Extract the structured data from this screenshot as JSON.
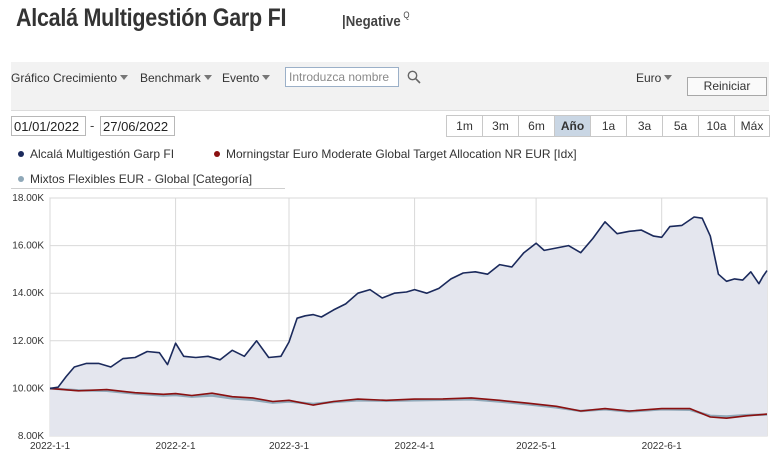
{
  "header": {
    "fund_name": "Alcalá Multigestión Garp FI",
    "rating_label": "|Negative",
    "rating_sup": "Q"
  },
  "toolbar": {
    "growth_chart_label": "Gráfico Crecimiento",
    "benchmark_label": "Benchmark",
    "event_label": "Evento",
    "search_placeholder": "Introduzca nombre",
    "currency_label": "Euro",
    "reset_label": "Reiniciar"
  },
  "date_range": {
    "start": "01/01/2022",
    "separator": "-",
    "end": "27/06/2022"
  },
  "periods": [
    {
      "label": "1m"
    },
    {
      "label": "3m"
    },
    {
      "label": "6m"
    },
    {
      "label": "Año",
      "active": true
    },
    {
      "label": "1a"
    },
    {
      "label": "3a"
    },
    {
      "label": "5a"
    },
    {
      "label": "10a"
    },
    {
      "label": "Máx"
    }
  ],
  "legend": [
    {
      "label": "Alcalá Multigestión Garp FI",
      "color": "#1b2a5c"
    },
    {
      "label": "Morningstar Euro Moderate Global Target Allocation NR EUR [Idx]",
      "color": "#8b1010"
    },
    {
      "label": "Mixtos Flexibles EUR - Global [Categoría]",
      "color": "#8fa8b8"
    }
  ],
  "chart_data": {
    "type": "area",
    "x_tick_labels": [
      "2022-1-1",
      "2022-2-1",
      "2022-3-1",
      "2022-4-1",
      "2022-5-1",
      "2022-6-1"
    ],
    "y_tick_labels": [
      "8.00K",
      "10.00K",
      "12.00K",
      "14.00K",
      "16.00K",
      "18.00K"
    ],
    "ylim": [
      8000,
      18000
    ],
    "xlim": [
      "2022-01-01",
      "2022-06-27"
    ],
    "grid": true,
    "series": [
      {
        "name": "Alcalá Multigestión Garp FI",
        "color": "#1b2a5c",
        "fill": "#e4e6ee",
        "points": [
          [
            "2022-01-01",
            10000
          ],
          [
            "2022-01-03",
            10050
          ],
          [
            "2022-01-05",
            10500
          ],
          [
            "2022-01-07",
            10900
          ],
          [
            "2022-01-10",
            11050
          ],
          [
            "2022-01-13",
            11050
          ],
          [
            "2022-01-16",
            10900
          ],
          [
            "2022-01-19",
            11250
          ],
          [
            "2022-01-22",
            11300
          ],
          [
            "2022-01-25",
            11550
          ],
          [
            "2022-01-28",
            11500
          ],
          [
            "2022-01-30",
            11000
          ],
          [
            "2022-02-01",
            11900
          ],
          [
            "2022-02-03",
            11350
          ],
          [
            "2022-02-06",
            11300
          ],
          [
            "2022-02-09",
            11350
          ],
          [
            "2022-02-12",
            11200
          ],
          [
            "2022-02-15",
            11600
          ],
          [
            "2022-02-18",
            11350
          ],
          [
            "2022-02-21",
            12000
          ],
          [
            "2022-02-24",
            11300
          ],
          [
            "2022-02-27",
            11350
          ],
          [
            "2022-03-01",
            11950
          ],
          [
            "2022-03-03",
            12950
          ],
          [
            "2022-03-05",
            13050
          ],
          [
            "2022-03-07",
            13100
          ],
          [
            "2022-03-09",
            13000
          ],
          [
            "2022-03-12",
            13300
          ],
          [
            "2022-03-15",
            13550
          ],
          [
            "2022-03-18",
            14000
          ],
          [
            "2022-03-21",
            14150
          ],
          [
            "2022-03-24",
            13800
          ],
          [
            "2022-03-27",
            14000
          ],
          [
            "2022-03-30",
            14050
          ],
          [
            "2022-04-01",
            14150
          ],
          [
            "2022-04-04",
            14000
          ],
          [
            "2022-04-07",
            14200
          ],
          [
            "2022-04-10",
            14600
          ],
          [
            "2022-04-13",
            14850
          ],
          [
            "2022-04-16",
            14900
          ],
          [
            "2022-04-19",
            14800
          ],
          [
            "2022-04-22",
            15200
          ],
          [
            "2022-04-25",
            15100
          ],
          [
            "2022-04-28",
            15700
          ],
          [
            "2022-05-01",
            16100
          ],
          [
            "2022-05-03",
            15800
          ],
          [
            "2022-05-06",
            15900
          ],
          [
            "2022-05-09",
            16000
          ],
          [
            "2022-05-12",
            15700
          ],
          [
            "2022-05-15",
            16300
          ],
          [
            "2022-05-18",
            17000
          ],
          [
            "2022-05-21",
            16500
          ],
          [
            "2022-05-24",
            16600
          ],
          [
            "2022-05-27",
            16650
          ],
          [
            "2022-05-30",
            16400
          ],
          [
            "2022-06-01",
            16350
          ],
          [
            "2022-06-03",
            16800
          ],
          [
            "2022-06-06",
            16850
          ],
          [
            "2022-06-09",
            17200
          ],
          [
            "2022-06-11",
            17150
          ],
          [
            "2022-06-13",
            16400
          ],
          [
            "2022-06-15",
            14800
          ],
          [
            "2022-06-17",
            14500
          ],
          [
            "2022-06-19",
            14600
          ],
          [
            "2022-06-21",
            14550
          ],
          [
            "2022-06-23",
            14900
          ],
          [
            "2022-06-25",
            14400
          ],
          [
            "2022-06-26",
            14700
          ],
          [
            "2022-06-27",
            14950
          ]
        ]
      },
      {
        "name": "Morningstar Euro Moderate Global Target Allocation NR EUR [Idx]",
        "color": "#8b1010",
        "points": [
          [
            "2022-01-01",
            10000
          ],
          [
            "2022-01-08",
            9900
          ],
          [
            "2022-01-15",
            9950
          ],
          [
            "2022-01-22",
            9820
          ],
          [
            "2022-01-29",
            9750
          ],
          [
            "2022-02-01",
            9780
          ],
          [
            "2022-02-05",
            9700
          ],
          [
            "2022-02-10",
            9800
          ],
          [
            "2022-02-15",
            9650
          ],
          [
            "2022-02-20",
            9600
          ],
          [
            "2022-02-25",
            9450
          ],
          [
            "2022-03-01",
            9500
          ],
          [
            "2022-03-07",
            9300
          ],
          [
            "2022-03-12",
            9450
          ],
          [
            "2022-03-18",
            9550
          ],
          [
            "2022-03-25",
            9500
          ],
          [
            "2022-04-01",
            9550
          ],
          [
            "2022-04-08",
            9560
          ],
          [
            "2022-04-15",
            9600
          ],
          [
            "2022-04-22",
            9500
          ],
          [
            "2022-04-29",
            9380
          ],
          [
            "2022-05-06",
            9250
          ],
          [
            "2022-05-12",
            9050
          ],
          [
            "2022-05-18",
            9150
          ],
          [
            "2022-05-24",
            9050
          ],
          [
            "2022-06-01",
            9150
          ],
          [
            "2022-06-08",
            9150
          ],
          [
            "2022-06-13",
            8800
          ],
          [
            "2022-06-17",
            8750
          ],
          [
            "2022-06-22",
            8850
          ],
          [
            "2022-06-27",
            8920
          ]
        ]
      },
      {
        "name": "Mixtos Flexibles EUR - Global [Categoría]",
        "color": "#8fa8b8",
        "points": [
          [
            "2022-01-01",
            10000
          ],
          [
            "2022-01-08",
            9920
          ],
          [
            "2022-01-15",
            9900
          ],
          [
            "2022-01-22",
            9780
          ],
          [
            "2022-01-29",
            9700
          ],
          [
            "2022-02-01",
            9720
          ],
          [
            "2022-02-05",
            9650
          ],
          [
            "2022-02-10",
            9700
          ],
          [
            "2022-02-15",
            9580
          ],
          [
            "2022-02-20",
            9520
          ],
          [
            "2022-02-25",
            9400
          ],
          [
            "2022-03-01",
            9450
          ],
          [
            "2022-03-07",
            9350
          ],
          [
            "2022-03-12",
            9430
          ],
          [
            "2022-03-18",
            9500
          ],
          [
            "2022-03-25",
            9480
          ],
          [
            "2022-04-01",
            9500
          ],
          [
            "2022-04-08",
            9520
          ],
          [
            "2022-04-15",
            9540
          ],
          [
            "2022-04-22",
            9450
          ],
          [
            "2022-04-29",
            9330
          ],
          [
            "2022-05-06",
            9200
          ],
          [
            "2022-05-12",
            9050
          ],
          [
            "2022-05-18",
            9120
          ],
          [
            "2022-05-24",
            9030
          ],
          [
            "2022-06-01",
            9120
          ],
          [
            "2022-06-08",
            9100
          ],
          [
            "2022-06-13",
            8850
          ],
          [
            "2022-06-17",
            8820
          ],
          [
            "2022-06-22",
            8880
          ],
          [
            "2022-06-27",
            8900
          ]
        ]
      }
    ]
  }
}
